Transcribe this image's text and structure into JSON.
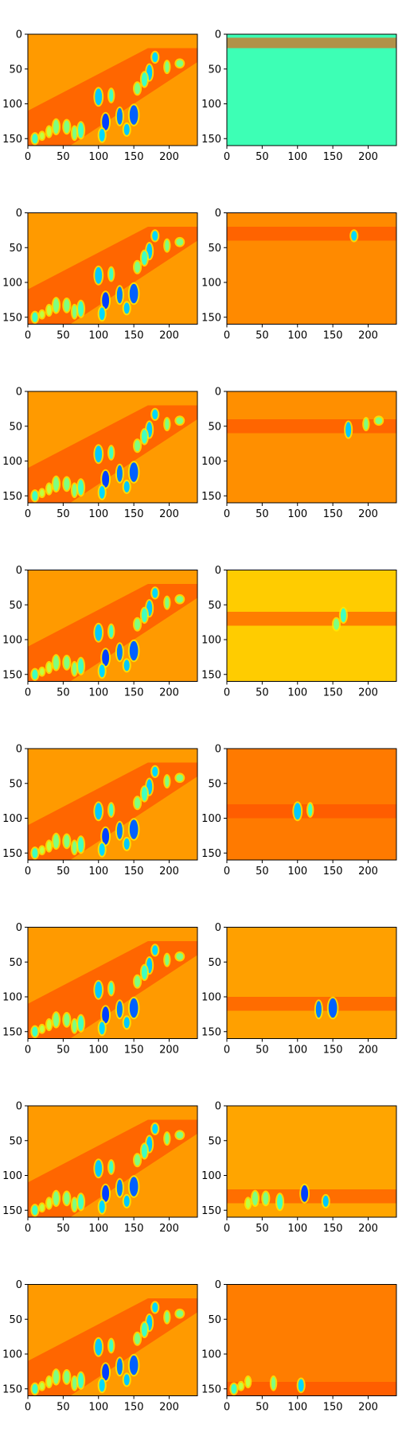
{
  "chart_data": {
    "type": "heatmap",
    "colormap": "jet",
    "layout": "8 rows x 2 columns",
    "xlim": [
      0,
      240
    ],
    "ylim": [
      160,
      0
    ],
    "x_ticks": [
      0,
      50,
      100,
      150,
      200
    ],
    "y_ticks": [
      0,
      50,
      100,
      150
    ],
    "x_tick_labels": [
      "0",
      "50",
      "100",
      "150",
      "200"
    ],
    "y_tick_labels": [
      "0",
      "50",
      "100",
      "150"
    ],
    "grid": false,
    "panels": [
      {
        "row": 1,
        "col": 1,
        "content": "full image",
        "background": "#ff9a00",
        "band_y": [
          20,
          160
        ]
      },
      {
        "row": 1,
        "col": 2,
        "content": "isolated band",
        "background": "#3dffb5",
        "band_y": [
          5,
          20
        ]
      },
      {
        "row": 2,
        "col": 1,
        "content": "full image",
        "background": "#ff9a00",
        "band_y": [
          20,
          160
        ]
      },
      {
        "row": 2,
        "col": 2,
        "content": "isolated band",
        "background": "#ff8a00",
        "band_y": [
          20,
          40
        ]
      },
      {
        "row": 3,
        "col": 1,
        "content": "full image",
        "background": "#ff9a00",
        "band_y": [
          20,
          160
        ]
      },
      {
        "row": 3,
        "col": 2,
        "content": "isolated band",
        "background": "#ff8f00",
        "band_y": [
          40,
          60
        ]
      },
      {
        "row": 4,
        "col": 1,
        "content": "full image",
        "background": "#ff9a00",
        "band_y": [
          20,
          160
        ]
      },
      {
        "row": 4,
        "col": 2,
        "content": "isolated band",
        "background": "#ffcc00",
        "band_y": [
          60,
          80
        ]
      },
      {
        "row": 5,
        "col": 1,
        "content": "full image",
        "background": "#ff9a00",
        "band_y": [
          20,
          160
        ]
      },
      {
        "row": 5,
        "col": 2,
        "content": "isolated band",
        "background": "#ff7a00",
        "band_y": [
          80,
          100
        ]
      },
      {
        "row": 6,
        "col": 1,
        "content": "full image",
        "background": "#ff9a00",
        "band_y": [
          20,
          160
        ]
      },
      {
        "row": 6,
        "col": 2,
        "content": "isolated band",
        "background": "#ffa000",
        "band_y": [
          100,
          120
        ]
      },
      {
        "row": 7,
        "col": 1,
        "content": "full image",
        "background": "#ff9a00",
        "band_y": [
          20,
          160
        ]
      },
      {
        "row": 7,
        "col": 2,
        "content": "isolated band",
        "background": "#ffa500",
        "band_y": [
          120,
          140
        ]
      },
      {
        "row": 8,
        "col": 1,
        "content": "full image",
        "background": "#ff9a00",
        "band_y": [
          20,
          160
        ]
      },
      {
        "row": 8,
        "col": 2,
        "content": "isolated band",
        "background": "#ff7d00",
        "band_y": [
          140,
          160
        ]
      }
    ],
    "blobs": [
      [
        180,
        33,
        4,
        7,
        "#00d8ff"
      ],
      [
        215,
        42,
        5,
        5,
        "#80ff80"
      ],
      [
        197,
        47,
        3,
        8,
        "#80ff80"
      ],
      [
        172,
        55,
        4,
        11,
        "#00c8ff"
      ],
      [
        165,
        65,
        4,
        10,
        "#40ffc0"
      ],
      [
        155,
        78,
        4,
        8,
        "#80ff80"
      ],
      [
        100,
        90,
        5,
        12,
        "#00c8ff"
      ],
      [
        118,
        88,
        3,
        9,
        "#40ffc0"
      ],
      [
        150,
        116,
        6,
        14,
        "#0060ff"
      ],
      [
        130,
        118,
        4,
        12,
        "#0080ff"
      ],
      [
        110,
        126,
        5,
        12,
        "#0040ff"
      ],
      [
        140,
        137,
        4,
        8,
        "#00c8ff"
      ],
      [
        105,
        145,
        4,
        9,
        "#00d8ff"
      ],
      [
        75,
        138,
        4,
        11,
        "#40ffc0"
      ],
      [
        66,
        142,
        3,
        9,
        "#80ff80"
      ],
      [
        55,
        133,
        4,
        9,
        "#80ff80"
      ],
      [
        40,
        133,
        4,
        10,
        "#80ff80"
      ],
      [
        30,
        140,
        3,
        7,
        "#c0ff40"
      ],
      [
        10,
        150,
        4,
        7,
        "#40ffc0"
      ],
      [
        20,
        146,
        3,
        5,
        "#c0ff40"
      ]
    ]
  }
}
